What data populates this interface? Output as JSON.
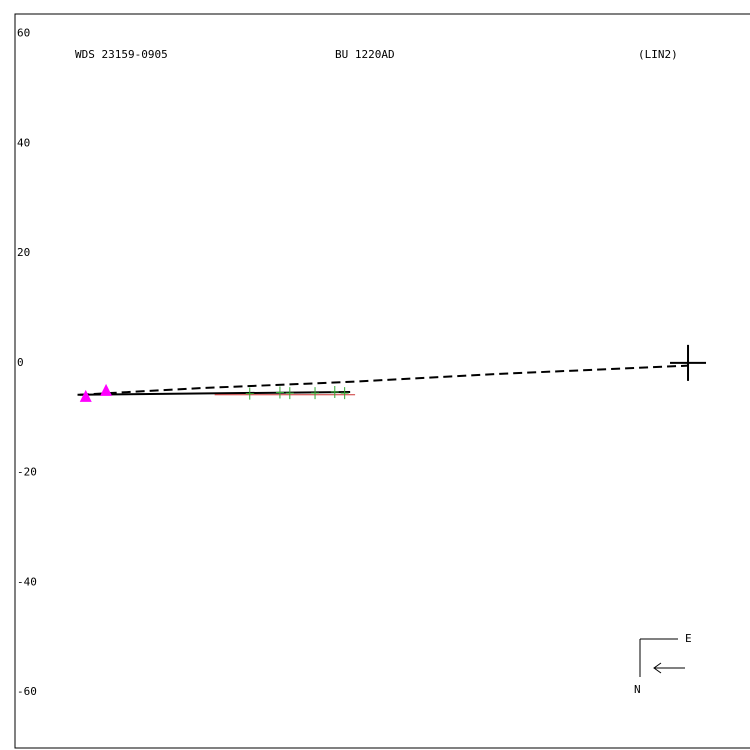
{
  "chart_data": {
    "type": "scatter",
    "titles": [
      "WDS 23159-0905",
      "BU 1220AD",
      "(LIN2)"
    ],
    "xlim": [
      -122.7,
      11.3
    ],
    "ylim": [
      -70.2,
      63.6
    ],
    "yticks": [
      60,
      40,
      20,
      0,
      -20,
      -40,
      -60
    ],
    "primary": {
      "x": 0,
      "y": 0,
      "color": "#000000"
    },
    "series": [
      {
        "marker": "dashed-line",
        "color": "#000000",
        "x": [
          -110.9,
          -89.0,
          -62.6,
          -34.3,
          0
        ],
        "values": [
          -5.8,
          -4.6,
          -3.5,
          -2.0,
          -0.5
        ]
      },
      {
        "marker": "line",
        "color": "#000000",
        "x": [
          -111.3,
          -61.6
        ],
        "values": [
          -5.8,
          -5.3
        ]
      },
      {
        "marker": "line",
        "color": "#cc3333",
        "x": [
          -86.3,
          -60.7
        ],
        "values": [
          -5.8,
          -5.8
        ]
      },
      {
        "marker": "plus",
        "color": "#33aa33",
        "x": [
          -79.9,
          -74.4,
          -72.6,
          -68.0,
          -64.4,
          -62.6
        ],
        "values": [
          -5.6,
          -5.4,
          -5.5,
          -5.5,
          -5.3,
          -5.5
        ]
      },
      {
        "marker": "triangle",
        "color": "#ff00ff",
        "x": [
          -109.8,
          -106.1
        ],
        "values": [
          -6.2,
          -5.1
        ]
      }
    ],
    "compass": {
      "east": "E",
      "north": "N"
    }
  }
}
